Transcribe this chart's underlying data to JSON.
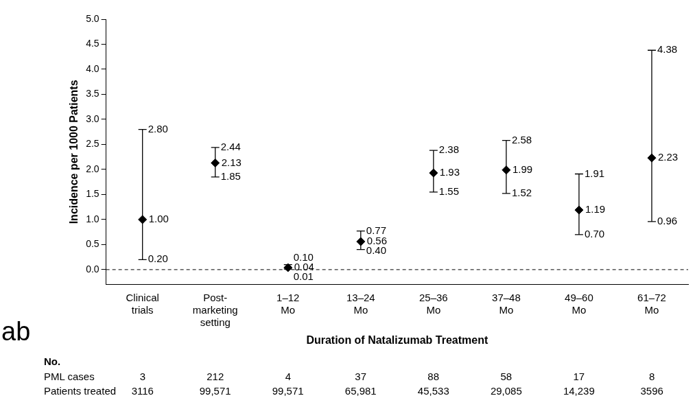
{
  "chart_data": {
    "type": "scatter",
    "xlabel": "Duration of Natalizumab Treatment",
    "ylabel": "Incidence per 1000 Patients",
    "categories": [
      "Clinical\ntrials",
      "Post-\nmarketing\nsetting",
      "1–12\nMo",
      "13–24\nMo",
      "25–36\nMo",
      "37–48\nMo",
      "49–60\nMo",
      "61–72\nMo"
    ],
    "values": [
      1.0,
      2.13,
      0.04,
      0.56,
      1.93,
      1.99,
      1.19,
      2.23
    ],
    "value_labels": [
      "1.00",
      "2.13",
      "0.04",
      "0.56",
      "1.93",
      "1.99",
      "1.19",
      "2.23"
    ],
    "errors": [
      [
        0.2,
        2.8
      ],
      [
        1.85,
        2.44
      ],
      [
        0.01,
        0.1
      ],
      [
        0.4,
        0.77
      ],
      [
        1.55,
        2.38
      ],
      [
        1.52,
        2.58
      ],
      [
        0.7,
        1.91
      ],
      [
        0.96,
        4.38
      ]
    ],
    "color": "#000000",
    "marker": "diamond",
    "legend": false,
    "grid": false,
    "ylim": [
      -0.3,
      5.0
    ],
    "yticks": [
      {
        "value": 0,
        "label": "0.0"
      },
      {
        "value": 0.5,
        "label": "0.5"
      },
      {
        "value": 1,
        "label": "1.0"
      },
      {
        "value": 1.5,
        "label": "1.5"
      },
      {
        "value": 2,
        "label": "2.0"
      },
      {
        "value": 2.5,
        "label": "2.5"
      },
      {
        "value": 3,
        "label": "3.0"
      },
      {
        "value": 3.5,
        "label": "3.5"
      },
      {
        "value": 4,
        "label": "4.0"
      },
      {
        "value": 4.5,
        "label": "4.5"
      },
      {
        "value": 5,
        "label": "5.0"
      }
    ],
    "ref_lines": [
      {
        "axis": "y",
        "value": 0,
        "line_style": "dashed",
        "color": "#000000"
      }
    ],
    "annotations": [
      {
        "text": "0.20",
        "x": "Clinical\ntrials",
        "y": 0.2
      },
      {
        "text": "2.80",
        "x": "Clinical\ntrials",
        "y": 2.8
      },
      {
        "text": "1.85",
        "x": "Post-\nmarketing\nsetting",
        "y": 1.85
      },
      {
        "text": "2.44",
        "x": "Post-\nmarketing\nsetting",
        "y": 2.44
      },
      {
        "text": "0.01",
        "x": "1–12\nMo",
        "y": 0.01
      },
      {
        "text": "0.10",
        "x": "1–12\nMo",
        "y": 0.1
      },
      {
        "text": "0.40",
        "x": "13–24\nMo",
        "y": 0.4
      },
      {
        "text": "0.77",
        "x": "13–24\nMo",
        "y": 0.77
      },
      {
        "text": "1.55",
        "x": "25–36\nMo",
        "y": 1.55
      },
      {
        "text": "2.38",
        "x": "25–36\nMo",
        "y": 2.38
      },
      {
        "text": "1.52",
        "x": "37–48\nMo",
        "y": 1.52
      },
      {
        "text": "2.58",
        "x": "37–48\nMo",
        "y": 2.58
      },
      {
        "text": "0.70",
        "x": "49–60\nMo",
        "y": 0.7
      },
      {
        "text": "1.91",
        "x": "49–60\nMo",
        "y": 1.91
      },
      {
        "text": "0.96",
        "x": "61–72\nMo",
        "y": 0.96
      },
      {
        "text": "4.38",
        "x": "61–72\nMo",
        "y": 4.38
      },
      "ab",
      "No.",
      "PML cases",
      "3",
      "212",
      "4",
      "37",
      "88",
      "58",
      "17",
      "8",
      "Patients treated",
      "3116",
      "99,571",
      "99,571",
      "65,981",
      "45,533",
      "29,085",
      "14,239",
      "3596"
    ]
  }
}
